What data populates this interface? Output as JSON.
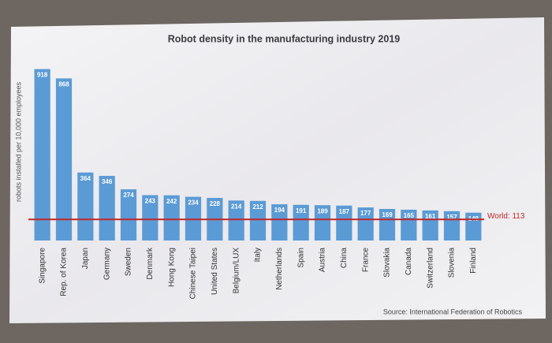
{
  "chart_data": {
    "type": "bar",
    "title": "Robot density in the manufacturing industry 2019",
    "y_label": "robots installed per 10,000 employees",
    "source": "Source: International Federation of Robotics",
    "categories": [
      "Singapore",
      "Rep. of Korea",
      "Japan",
      "Germany",
      "Sweden",
      "Denmark",
      "Hong Kong",
      "Chinese Taipei",
      "United States",
      "Belgium/LUX",
      "Italy",
      "Netherlands",
      "Spain",
      "Austria",
      "China",
      "France",
      "Slovakia",
      "Canada",
      "Switzerland",
      "Slovenia",
      "Finland"
    ],
    "values": [
      918,
      868,
      364,
      346,
      274,
      243,
      242,
      234,
      228,
      214,
      212,
      194,
      191,
      189,
      187,
      177,
      169,
      165,
      161,
      157,
      149
    ],
    "color": "#5b9bd5",
    "ylim": [
      0,
      950
    ],
    "reference": {
      "value": 113,
      "label": "World: 113",
      "color": "#c0282a"
    }
  }
}
